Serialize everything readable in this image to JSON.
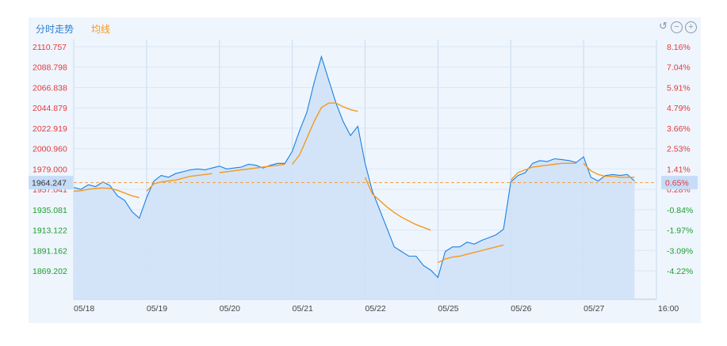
{
  "header": {
    "tab_intraday": "分时走势",
    "tab_average": "均线"
  },
  "colors": {
    "price_line": "#1a80e5",
    "average_line": "#f39a1e",
    "up": "#e23b3b",
    "down": "#1f9d2e",
    "ref_line": "#f0a040",
    "current_box": "#c7dcf7"
  },
  "toolbar": {
    "undo_icon": "undo-icon",
    "zoom_out_icon": "zoom-out-icon",
    "zoom_in_icon": "zoom-in-icon"
  },
  "chart_data": {
    "type": "line",
    "title": "",
    "ylim": [
      1852,
      2117
    ],
    "reference_price": 1951.5,
    "current_price": "1964.247",
    "current_pct": "0.65%",
    "left_ticks": [
      "2110.757",
      "2088.798",
      "2066.838",
      "2044.879",
      "2022.919",
      "2000.960",
      "1979.000",
      "1957.041",
      "1935.081",
      "1913.122",
      "1891.162",
      "1869.202"
    ],
    "right_ticks": [
      "8.16%",
      "7.04%",
      "5.91%",
      "4.79%",
      "3.66%",
      "2.53%",
      "1.41%",
      "0.28%",
      "-0.84%",
      "-1.97%",
      "-3.09%",
      "-4.22%"
    ],
    "x_ticks": [
      "05/18",
      "05/19",
      "05/20",
      "05/21",
      "05/22",
      "05/25",
      "05/26",
      "05/27",
      "16:00"
    ],
    "x": [
      0,
      0.1,
      0.2,
      0.3,
      0.4,
      0.5,
      0.6,
      0.7,
      0.8,
      0.9,
      1.0,
      1.1,
      1.2,
      1.3,
      1.4,
      1.5,
      1.6,
      1.7,
      1.8,
      1.9,
      2.0,
      2.1,
      2.2,
      2.3,
      2.4,
      2.5,
      2.6,
      2.7,
      2.8,
      2.9,
      3.0,
      3.1,
      3.2,
      3.3,
      3.4,
      3.5,
      3.6,
      3.7,
      3.8,
      3.9,
      4.0,
      4.1,
      4.2,
      4.3,
      4.4,
      4.5,
      4.6,
      4.7,
      4.8,
      4.9,
      5.0,
      5.1,
      5.2,
      5.3,
      5.4,
      5.5,
      5.6,
      5.7,
      5.8,
      5.9,
      6.0,
      6.1,
      6.2,
      6.3,
      6.4,
      6.5,
      6.6,
      6.7,
      6.8,
      6.9,
      7.0,
      7.1,
      7.2,
      7.3,
      7.4,
      7.5,
      7.6,
      7.7
    ],
    "series": [
      {
        "values": [
          1959,
          1957,
          1962,
          1960,
          1965,
          1961,
          1950,
          1945,
          1933,
          1926,
          1948,
          1966,
          1972,
          1970,
          1974,
          1976,
          1978,
          1979,
          1978,
          1980,
          1982,
          1979,
          1980,
          1981,
          1984,
          1983,
          1980,
          1983,
          1985,
          1985,
          1998,
          2020,
          2040,
          2072,
          2100,
          2075,
          2050,
          2030,
          2015,
          2025,
          1985,
          1955,
          1935,
          1915,
          1895,
          1890,
          1885,
          1885,
          1875,
          1870,
          1862,
          1890,
          1895,
          1895,
          1900,
          1898,
          1902,
          1905,
          1908,
          1914,
          1965,
          1972,
          1975,
          1985,
          1988,
          1987,
          1990,
          1989,
          1988,
          1986,
          1992,
          1970,
          1966,
          1972,
          1973,
          1972,
          1973,
          1966
        ]
      },
      {
        "values": [
          1955,
          1955.5,
          1957,
          1958,
          1958.5,
          1958,
          1956,
          1953,
          1950,
          1948,
          1955,
          1963,
          1965,
          1966,
          1967,
          1969,
          1971,
          1972,
          1973,
          1974,
          1975,
          1976,
          1977,
          1978,
          1979,
          1980,
          1981,
          1982,
          1983,
          1984,
          1984,
          1994,
          2012,
          2030,
          2045,
          2050,
          2050,
          2046,
          2043,
          2041,
          1970,
          1952,
          1945,
          1938,
          1932,
          1927,
          1923,
          1919,
          1916,
          1913,
          1878,
          1882,
          1884,
          1885,
          1887,
          1889,
          1891,
          1893,
          1895,
          1897,
          1967,
          1975,
          1978,
          1981,
          1982,
          1983,
          1984,
          1985,
          1985,
          1985,
          1985,
          1977,
          1973,
          1971,
          1971,
          1970,
          1970,
          1970
        ]
      }
    ]
  }
}
